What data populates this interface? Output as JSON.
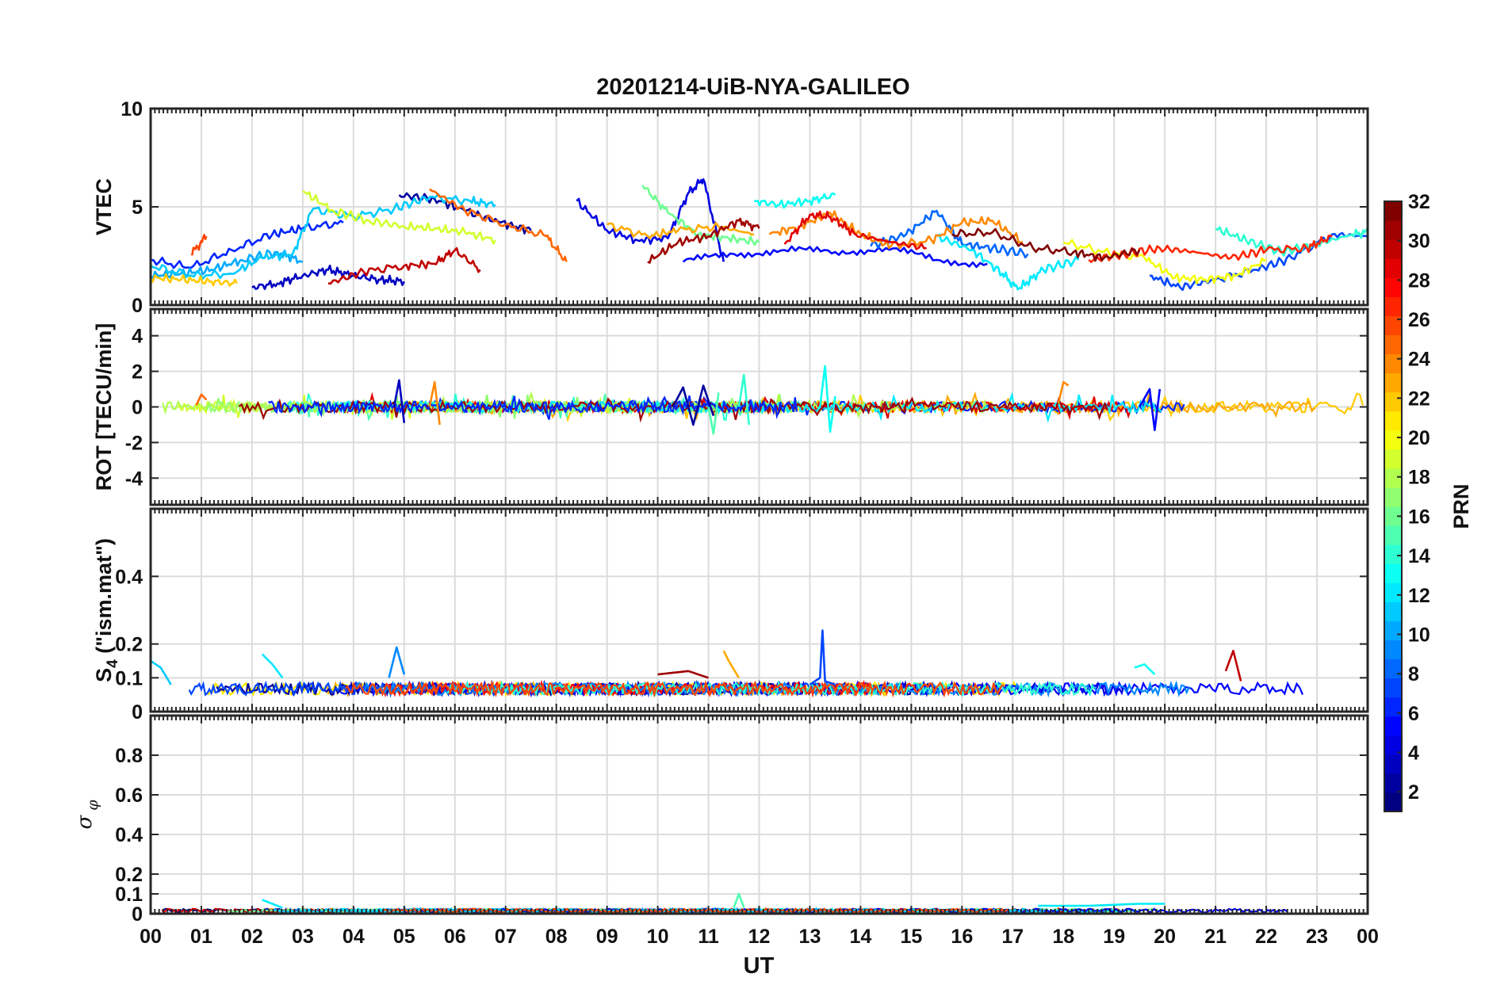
{
  "title": "20201214-UiB-NYA-GALILEO",
  "xlabel": "UT",
  "x_tick_labels": [
    "00",
    "01",
    "02",
    "03",
    "04",
    "05",
    "06",
    "07",
    "08",
    "09",
    "10",
    "11",
    "12",
    "13",
    "14",
    "15",
    "16",
    "17",
    "18",
    "19",
    "20",
    "21",
    "22",
    "23",
    "00"
  ],
  "colorbar": {
    "label": "PRN",
    "range": [
      1,
      32
    ],
    "tick_labels": [
      "2",
      "4",
      "6",
      "8",
      "10",
      "12",
      "14",
      "16",
      "18",
      "20",
      "22",
      "24",
      "26",
      "28",
      "30",
      "32"
    ],
    "colormap": "jet"
  },
  "chart_data": [
    {
      "type": "line",
      "panel": "VTEC",
      "ylabel": "VTEC",
      "ylim": [
        0,
        10
      ],
      "yticks": [
        "0",
        "5",
        "10"
      ],
      "grid": true,
      "series": [
        {
          "prn": 2,
          "x": [
            4.9,
            5.6,
            6.2,
            6.9,
            7.5
          ],
          "values": [
            5.6,
            5.4,
            4.8,
            4.2,
            3.8
          ]
        },
        {
          "prn": 3,
          "x": [
            2.0,
            2.5,
            3.0,
            3.5,
            4.0,
            4.5,
            5.0
          ],
          "values": [
            0.9,
            1.1,
            1.5,
            1.8,
            1.5,
            1.3,
            1.2
          ]
        },
        {
          "prn": 4,
          "x": [
            8.4,
            9.0,
            9.6,
            10.2,
            10.6,
            10.9,
            11.3
          ],
          "values": [
            5.3,
            3.8,
            3.3,
            3.4,
            5.7,
            6.4,
            2.2
          ]
        },
        {
          "prn": 5,
          "x": [
            10.5,
            11.5,
            12.5,
            13.5,
            14.5,
            15.5,
            16.5
          ],
          "values": [
            2.2,
            2.6,
            2.8,
            2.7,
            2.9,
            2.3,
            2.1
          ]
        },
        {
          "prn": 6,
          "x": [
            0.0,
            0.8,
            1.6,
            2.4,
            3.0,
            3.8
          ],
          "values": [
            2.3,
            1.9,
            2.8,
            3.6,
            3.9,
            4.2
          ]
        },
        {
          "prn": 7,
          "x": [
            19.7,
            20.3,
            21.0,
            21.8,
            22.5,
            23.3,
            24.0
          ],
          "values": [
            1.5,
            0.9,
            1.3,
            1.8,
            2.4,
            3.6,
            3.5
          ]
        },
        {
          "prn": 8,
          "x": [
            14.2,
            14.9,
            15.5,
            16.0,
            16.6,
            17.3
          ],
          "values": [
            3.0,
            3.6,
            4.8,
            3.1,
            2.9,
            2.6
          ]
        },
        {
          "prn": 10,
          "x": [
            0.0,
            0.6,
            1.2,
            1.8,
            2.5,
            3.0
          ],
          "values": [
            1.5,
            1.6,
            1.8,
            2.3,
            2.7,
            2.2
          ]
        },
        {
          "prn": 11,
          "x": [
            0.0,
            0.8,
            1.6,
            2.2,
            2.8,
            3.2,
            4.0,
            4.8,
            5.5,
            6.3,
            6.8
          ],
          "values": [
            2.0,
            1.5,
            1.6,
            2.4,
            2.6,
            4.9,
            4.5,
            4.9,
            5.5,
            5.3,
            5.1
          ]
        },
        {
          "prn": 12,
          "x": [
            15.5,
            16.2,
            16.8,
            17.1,
            17.6,
            18.3
          ],
          "values": [
            3.5,
            2.8,
            1.6,
            0.8,
            1.8,
            2.3
          ]
        },
        {
          "prn": 13,
          "x": [
            11.9,
            12.4,
            13.0,
            13.5
          ],
          "values": [
            5.3,
            5.1,
            5.3,
            5.6
          ]
        },
        {
          "prn": 14,
          "x": [
            21.0,
            21.6,
            22.3,
            23.0,
            23.7,
            24.0
          ],
          "values": [
            3.9,
            3.3,
            2.7,
            3.1,
            3.6,
            3.7
          ]
        },
        {
          "prn": 16,
          "x": [
            9.7,
            10.2,
            10.8,
            11.4,
            12.0
          ],
          "values": [
            6.1,
            4.7,
            3.6,
            3.4,
            3.2
          ]
        },
        {
          "prn": 19,
          "x": [
            3.0,
            3.6,
            4.3,
            5.0,
            5.6,
            6.2,
            6.8
          ],
          "values": [
            5.8,
            4.8,
            4.3,
            4.0,
            3.9,
            3.7,
            3.3
          ]
        },
        {
          "prn": 20,
          "x": [
            18.0,
            18.8,
            19.6,
            20.2,
            20.8,
            21.4,
            22.0
          ],
          "values": [
            3.2,
            2.7,
            2.4,
            1.4,
            1.3,
            1.5,
            2.3
          ]
        },
        {
          "prn": 22,
          "x": [
            0.0,
            0.6,
            1.2,
            1.7
          ],
          "values": [
            1.4,
            1.3,
            1.2,
            1.1
          ]
        },
        {
          "prn": 23,
          "x": [
            9.0,
            9.8,
            10.4,
            11.2,
            11.9
          ],
          "values": [
            4.1,
            3.5,
            3.8,
            4.0,
            3.6
          ]
        },
        {
          "prn": 24,
          "x": [
            12.2,
            12.8,
            13.4,
            14.0,
            14.6,
            15.4,
            16.0,
            16.6,
            17.2
          ],
          "values": [
            3.6,
            4.0,
            4.7,
            3.6,
            3.0,
            3.3,
            4.2,
            4.3,
            3.2
          ]
        },
        {
          "prn": 25,
          "x": [
            5.5,
            6.2,
            7.0,
            7.8,
            8.2
          ],
          "values": [
            5.9,
            4.8,
            4.1,
            3.5,
            2.2
          ]
        },
        {
          "prn": 26,
          "x": [
            0.8,
            1.1
          ],
          "values": [
            2.6,
            3.5
          ]
        },
        {
          "prn": 27,
          "x": [
            18.5,
            19.2,
            19.9,
            20.6,
            21.3,
            22.0,
            22.8,
            23.3
          ],
          "values": [
            2.3,
            2.6,
            2.9,
            2.7,
            2.4,
            2.8,
            2.9,
            3.5
          ]
        },
        {
          "prn": 29,
          "x": [
            12.5,
            13.0,
            13.4,
            13.9,
            14.6,
            15.3
          ],
          "values": [
            3.1,
            4.6,
            4.5,
            3.6,
            3.2,
            2.9
          ]
        },
        {
          "prn": 30,
          "x": [
            3.5,
            4.2,
            5.0,
            5.6,
            6.0,
            6.5
          ],
          "values": [
            1.1,
            1.7,
            2.0,
            2.1,
            2.8,
            1.8
          ]
        },
        {
          "prn": 31,
          "x": [
            9.8,
            10.4,
            11.0,
            11.6,
            12.0
          ],
          "values": [
            2.2,
            3.2,
            3.5,
            4.3,
            3.9
          ]
        },
        {
          "prn": 32,
          "x": [
            15.8,
            16.6,
            17.4,
            18.2,
            18.8,
            19.5
          ],
          "values": [
            3.6,
            3.7,
            2.9,
            2.7,
            2.4,
            2.8
          ]
        }
      ]
    },
    {
      "type": "line",
      "panel": "ROT",
      "ylabel": "ROT [TECU/min]",
      "ylim": [
        -5.5,
        5.5
      ],
      "yticks": [
        "-4",
        "-2",
        "0",
        "2",
        "4"
      ],
      "grid": true,
      "series": [
        {
          "prn": 3,
          "x": [
            4.8,
            4.9,
            5.0
          ],
          "values": [
            0.0,
            1.5,
            -0.9
          ]
        },
        {
          "prn": 2,
          "x": [
            10.3,
            10.5,
            10.7,
            10.9,
            11.1
          ],
          "values": [
            0.0,
            1.1,
            -1.0,
            1.2,
            -0.5
          ]
        },
        {
          "prn": 24,
          "x": [
            5.5,
            5.6,
            5.7
          ],
          "values": [
            0.0,
            1.4,
            -1.0
          ]
        },
        {
          "prn": 14,
          "x": [
            11.6,
            11.7,
            11.8
          ],
          "values": [
            0.0,
            1.8,
            -1.0
          ]
        },
        {
          "prn": 13,
          "x": [
            13.2,
            13.3,
            13.4,
            13.5
          ],
          "values": [
            0.0,
            2.3,
            -1.4,
            0.6
          ]
        },
        {
          "prn": 15,
          "x": [
            11.0,
            11.1,
            11.2
          ],
          "values": [
            0.0,
            -1.5,
            0.8
          ]
        },
        {
          "prn": 24,
          "x": [
            17.9,
            18.0,
            18.1
          ],
          "values": [
            0.2,
            1.4,
            1.2
          ]
        },
        {
          "prn": 5,
          "x": [
            19.5,
            19.7,
            19.8,
            19.9
          ],
          "values": [
            0.0,
            1.0,
            -1.3,
            1.0
          ]
        },
        {
          "prn": 25,
          "x": [
            0.9,
            1.0,
            1.1
          ],
          "values": [
            0.1,
            0.7,
            0.4
          ]
        }
      ]
    },
    {
      "type": "line",
      "panel": "S4",
      "ylabel": "S4 (\"ism.mat\")",
      "ylim": [
        0,
        0.6
      ],
      "yticks": [
        "0",
        "0.1",
        "0.2",
        "0.4"
      ],
      "grid": true,
      "series": [
        {
          "prn": 7,
          "x": [
            13.0,
            13.2,
            13.25,
            13.3,
            13.5
          ],
          "values": [
            0.08,
            0.1,
            0.24,
            0.09,
            0.08
          ]
        },
        {
          "prn": 11,
          "x": [
            0.0,
            0.2,
            0.4
          ],
          "values": [
            0.15,
            0.13,
            0.08
          ]
        },
        {
          "prn": 12,
          "x": [
            2.2,
            2.4,
            2.6
          ],
          "values": [
            0.17,
            0.14,
            0.1
          ]
        },
        {
          "prn": 23,
          "x": [
            11.3,
            11.4,
            11.6
          ],
          "values": [
            0.18,
            0.15,
            0.1
          ]
        },
        {
          "prn": 30,
          "x": [
            21.2,
            21.35,
            21.5
          ],
          "values": [
            0.12,
            0.18,
            0.09
          ]
        },
        {
          "prn": 9,
          "x": [
            4.7,
            4.85,
            5.0
          ],
          "values": [
            0.1,
            0.19,
            0.11
          ]
        },
        {
          "prn": 31,
          "x": [
            10.0,
            10.6,
            11.0
          ],
          "values": [
            0.11,
            0.12,
            0.1
          ]
        },
        {
          "prn": 13,
          "x": [
            19.4,
            19.6,
            19.8
          ],
          "values": [
            0.13,
            0.14,
            0.11
          ]
        }
      ]
    },
    {
      "type": "line",
      "panel": "sigma_phi",
      "ylabel": "σφ",
      "ylim": [
        0,
        1.0
      ],
      "yticks": [
        "0",
        "0.1",
        "0.2",
        "0.4",
        "0.6",
        "0.8"
      ],
      "grid": true,
      "series": [
        {
          "prn": 12,
          "x": [
            2.2,
            2.4,
            2.6
          ],
          "values": [
            0.07,
            0.05,
            0.03
          ]
        },
        {
          "prn": 15,
          "x": [
            11.5,
            11.6,
            11.7
          ],
          "values": [
            0.03,
            0.1,
            0.03
          ]
        },
        {
          "prn": 12,
          "x": [
            17.5,
            18.5,
            19.5,
            20.0
          ],
          "values": [
            0.04,
            0.04,
            0.05,
            0.05
          ]
        }
      ]
    }
  ]
}
